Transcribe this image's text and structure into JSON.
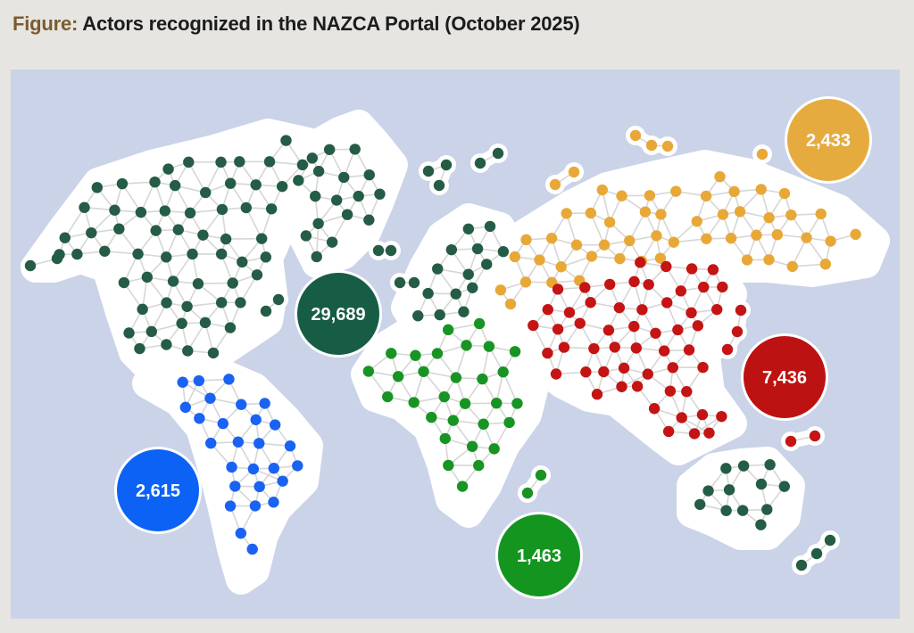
{
  "figure": {
    "label": "Figure:",
    "title": "Actors recognized in the NAZCA Portal (October 2025)"
  },
  "colors": {
    "background": "#cad3e8",
    "land": "#ffffff",
    "link": "#d6d6d6",
    "north_america_oceania": "#245c45",
    "latin_america": "#1a62f2",
    "africa": "#179423",
    "asia_pacific": "#c41414",
    "europe_central_asia": "#e8a838"
  },
  "regions": [
    {
      "id": "north-america-oceania",
      "value": "29,689",
      "color": "#175d45"
    },
    {
      "id": "europe-central-asia",
      "value": "2,433",
      "color": "#e6ab3f"
    },
    {
      "id": "asia-pacific",
      "value": "7,436",
      "color": "#bd1212"
    },
    {
      "id": "latin-america",
      "value": "2,615",
      "color": "#0c62f5"
    },
    {
      "id": "africa",
      "value": "1,463",
      "color": "#149520"
    }
  ]
}
